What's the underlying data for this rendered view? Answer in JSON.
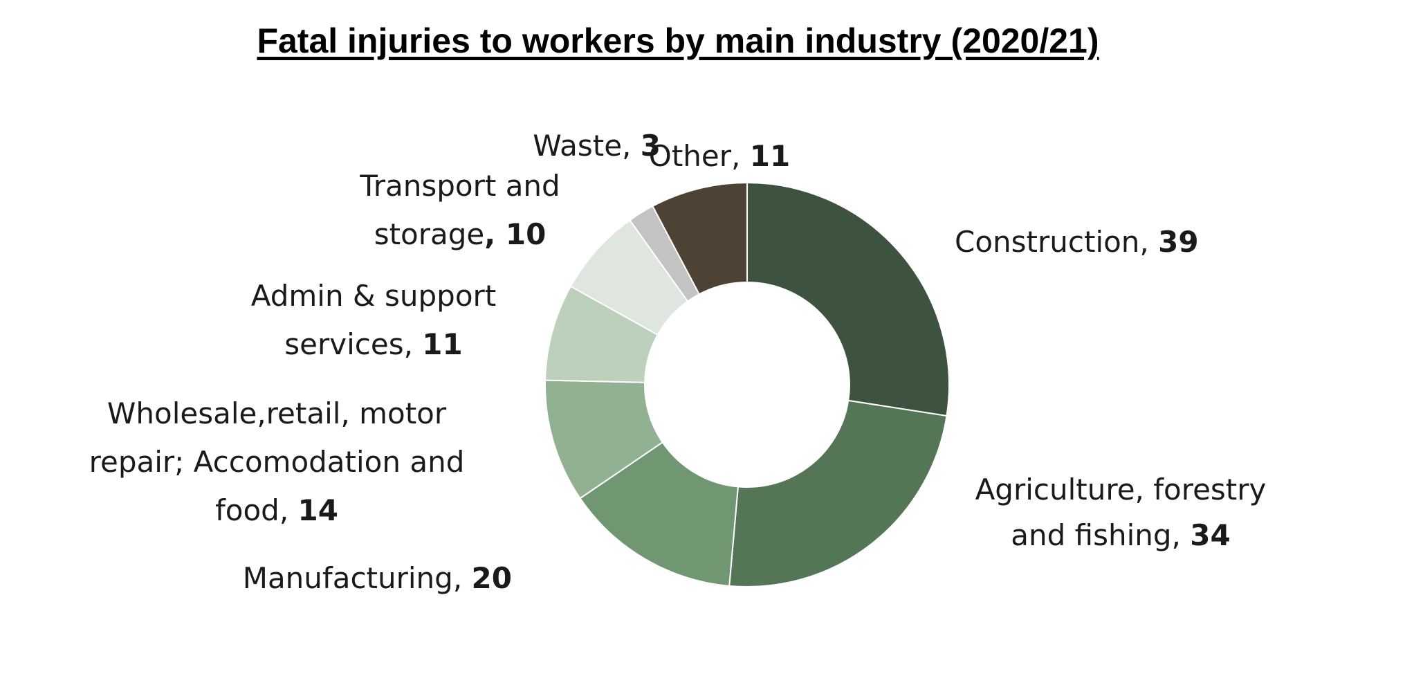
{
  "chart_data": {
    "type": "pie",
    "title": "Fatal injuries to workers by main industry (2020/21)",
    "slices": [
      {
        "label": "Construction",
        "value": 39,
        "color": "#3d5340",
        "text_lines": [
          "Construction, "
        ],
        "value_text": "39"
      },
      {
        "label": "Agriculture, forestry and fishing",
        "value": 34,
        "color": "#557656",
        "text_lines": [
          "Agriculture, forestry",
          "and fishing, "
        ],
        "value_text": "34"
      },
      {
        "label": "Manufacturing",
        "value": 20,
        "color": "#719672",
        "text_lines": [
          "Manufacturing, "
        ],
        "value_text": "20"
      },
      {
        "label": "Wholesale,retail, motor repair; Accomodation and food",
        "value": 14,
        "color": "#92b092",
        "text_lines": [
          "Wholesale,retail, motor",
          "repair; Accomodation and",
          "food, "
        ],
        "value_text": "14"
      },
      {
        "label": "Admin & support services",
        "value": 11,
        "color": "#bcd0bc",
        "text_lines": [
          "Admin & support",
          "services, "
        ],
        "value_text": "11"
      },
      {
        "label": "Transport and storage",
        "value": 10,
        "color": "#dfe6df",
        "text_lines": [
          "Transport and",
          "storage"
        ],
        "value_text": ", 10"
      },
      {
        "label": "Waste",
        "value": 3,
        "color": "#c3c3c3",
        "text_lines": [
          "Waste, "
        ],
        "value_text": "3"
      },
      {
        "label": "Other",
        "value": 11,
        "color": "#4d4233",
        "text_lines": [
          "Other, "
        ],
        "value_text": "11"
      }
    ]
  }
}
